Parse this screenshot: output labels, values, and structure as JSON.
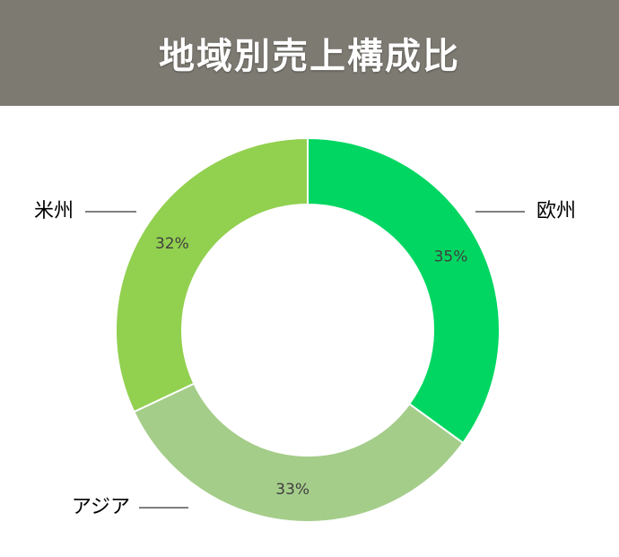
{
  "title": "地域別売上構成比",
  "colors": {
    "title_bg": "#7d7a72",
    "title_text": "#ffffff"
  },
  "chart_data": {
    "type": "pie",
    "donut": true,
    "slices": [
      {
        "label": "欧州",
        "value": 35,
        "value_label": "35%",
        "color": "#00d661"
      },
      {
        "label": "アジア",
        "value": 33,
        "value_label": "33%",
        "color": "#a5cd8a"
      },
      {
        "label": "米州",
        "value": 32,
        "value_label": "32%",
        "color": "#92d050"
      }
    ],
    "start": "12 o'clock",
    "direction": "clockwise"
  }
}
